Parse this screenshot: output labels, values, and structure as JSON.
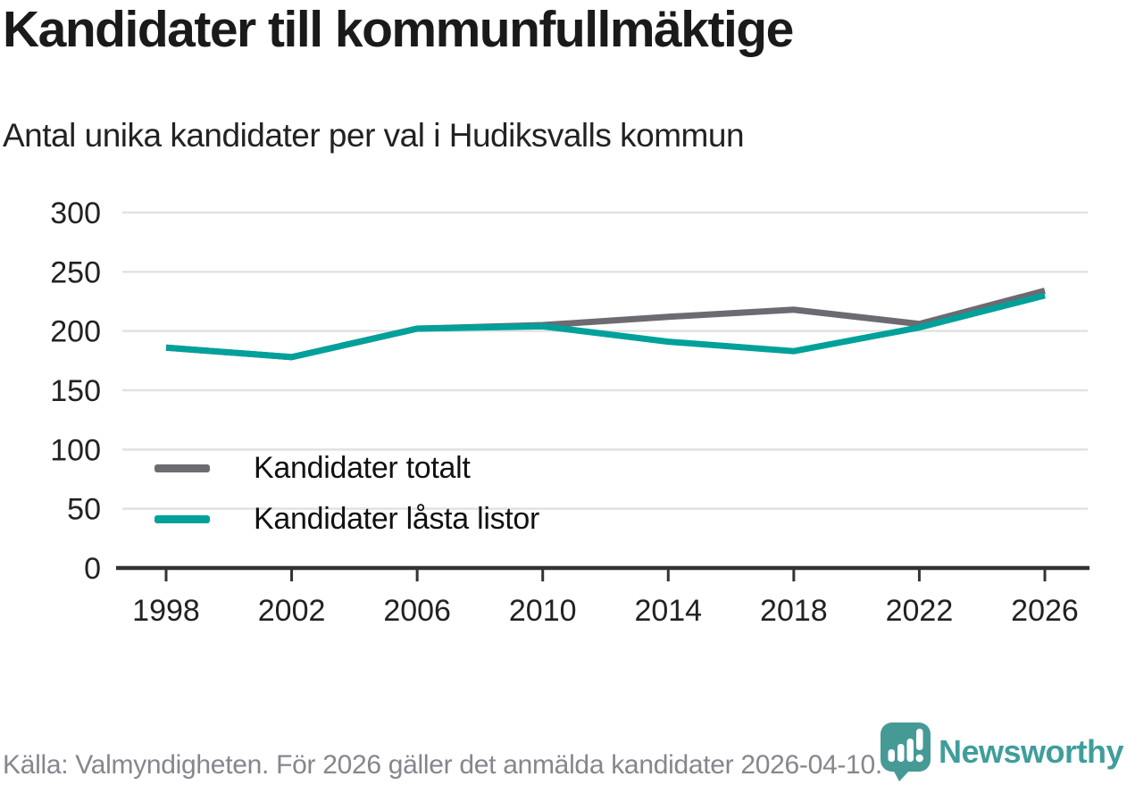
{
  "header": {
    "title": "Kandidater till kommunfullmäktige",
    "subtitle": "Antal unika kandidater per val i Hudiksvalls kommun"
  },
  "chart_data": {
    "type": "line",
    "x": [
      1998,
      2002,
      2006,
      2010,
      2014,
      2018,
      2022,
      2026
    ],
    "series": [
      {
        "name": "Kandidater totalt",
        "color": "#6e6a72",
        "values": [
          186,
          178,
          202,
          205,
          212,
          218,
          206,
          234
        ]
      },
      {
        "name": "Kandidater låsta listor",
        "color": "#00a19a",
        "values": [
          186,
          178,
          202,
          204,
          191,
          183,
          203,
          230
        ]
      }
    ],
    "ylim": [
      0,
      300
    ],
    "yticks": [
      0,
      50,
      100,
      150,
      200,
      250,
      300
    ],
    "grid": "horizontal",
    "legend_position": "inside-left",
    "title": "Kandidater till kommunfullmäktige",
    "subtitle": "Antal unika kandidater per val i Hudiksvalls kommun",
    "xlabel": "",
    "ylabel": ""
  },
  "footer": {
    "source": "Källa: Valmyndigheten. För 2026 gäller det anmälda kandidater 2026-04-10.",
    "brand": "Newsworthy"
  },
  "colors": {
    "accent_teal": "#00a19a",
    "neutral_gray": "#6e6a72",
    "logo_teal": "#459a96",
    "grid": "#e2e2e2",
    "axis": "#333333",
    "text_dark": "#1a1a1a",
    "muted_text": "#87858d"
  }
}
